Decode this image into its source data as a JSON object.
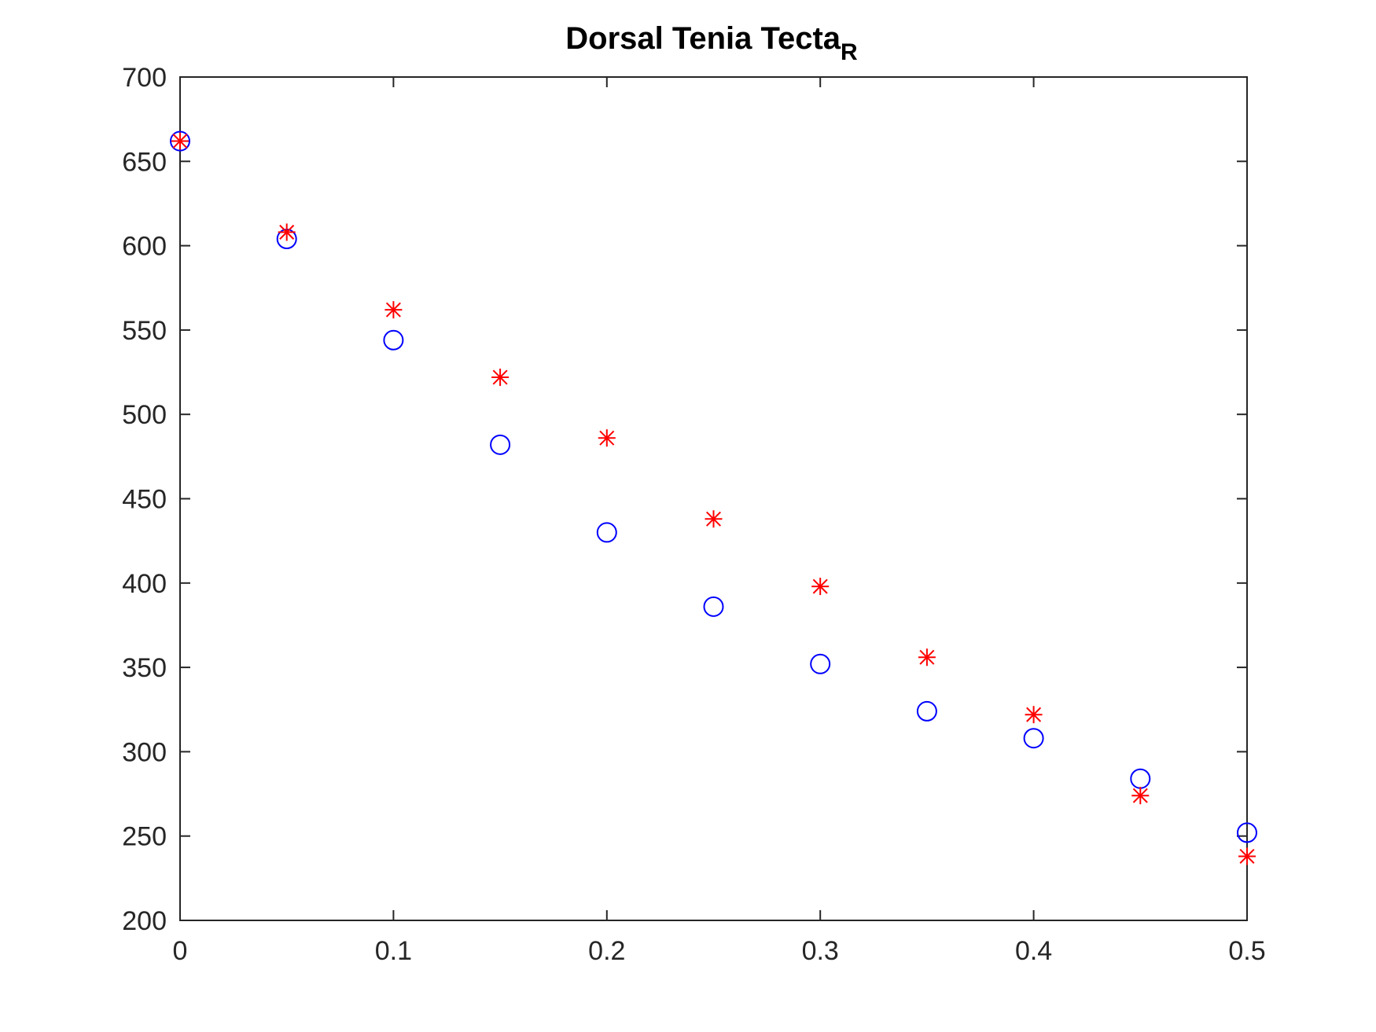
{
  "chart_data": {
    "type": "scatter",
    "title": "Dorsal Tenia Tecta",
    "title_subscript": "R",
    "xlabel": "",
    "ylabel": "",
    "xlim": [
      0,
      0.5
    ],
    "ylim": [
      200,
      700
    ],
    "x_ticks": [
      0,
      0.1,
      0.2,
      0.3,
      0.4,
      0.5
    ],
    "x_tick_labels": [
      "0",
      "0.1",
      "0.2",
      "0.3",
      "0.4",
      "0.5"
    ],
    "y_ticks": [
      200,
      250,
      300,
      350,
      400,
      450,
      500,
      550,
      600,
      650,
      700
    ],
    "y_tick_labels": [
      "200",
      "250",
      "300",
      "350",
      "400",
      "450",
      "500",
      "550",
      "600",
      "650",
      "700"
    ],
    "grid": false,
    "legend": "none",
    "series": [
      {
        "marker": "circle",
        "color": "#0000ff",
        "x": [
          0,
          0.05,
          0.1,
          0.15,
          0.2,
          0.25,
          0.3,
          0.35,
          0.4,
          0.45,
          0.5
        ],
        "y": [
          662,
          604,
          544,
          482,
          430,
          386,
          352,
          324,
          308,
          284,
          252
        ]
      },
      {
        "marker": "asterisk",
        "color": "#ff0000",
        "x": [
          0,
          0.05,
          0.1,
          0.15,
          0.2,
          0.25,
          0.3,
          0.35,
          0.4,
          0.45,
          0.5
        ],
        "y": [
          662,
          608,
          562,
          522,
          486,
          438,
          398,
          356,
          322,
          274,
          238
        ]
      }
    ]
  }
}
